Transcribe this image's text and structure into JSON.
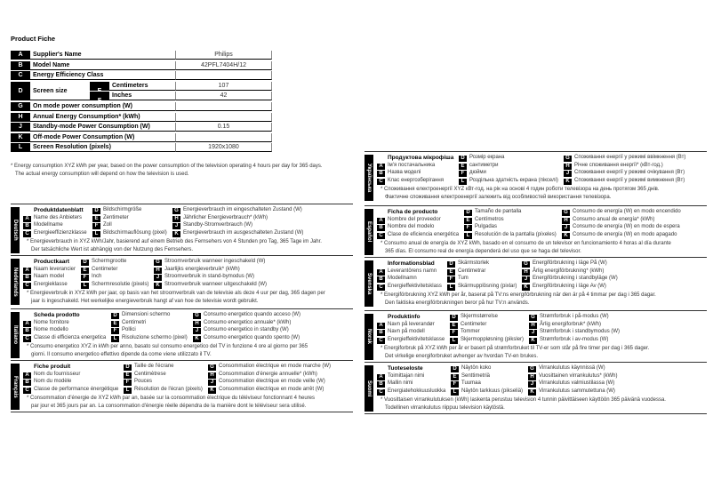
{
  "title": "Product Fiche",
  "fiche": {
    "rows": [
      {
        "letter": "A",
        "label": "Supplier's Name",
        "value": "Philips"
      },
      {
        "letter": "B",
        "label": "Model Name",
        "value": "42PFL7404H/12"
      },
      {
        "letter": "C",
        "label": "Energy Efficiency Class",
        "value": ""
      }
    ],
    "screen": {
      "letter": "D",
      "label": "Screen size",
      "subs": [
        {
          "letter": "E",
          "label": "Centimeters",
          "value": "107"
        },
        {
          "letter": "F",
          "label": "Inches",
          "value": "42"
        }
      ]
    },
    "rows2": [
      {
        "letter": "G",
        "label": "On mode power consumption (W)",
        "value": ""
      },
      {
        "letter": "H",
        "label": "Annual Energy Consumption* (kWh)",
        "value": ""
      },
      {
        "letter": "J",
        "label": "Standby-mode Power Consumption (W)",
        "value": "0.15"
      },
      {
        "letter": "K",
        "label": "Off-mode Power Consumption (W)",
        "value": ""
      },
      {
        "letter": "L",
        "label": "Screen Resolution (pixels)",
        "value": "1920x1080"
      }
    ]
  },
  "note": [
    "* Energy consumption XYZ kWh per year, based on the power consumption of the television operating 4 hours per day for 365 days.",
    "The actual energy consumption will depend on how the television is used."
  ],
  "languages": [
    {
      "lang": "Deutsch",
      "col": "left",
      "title": "Produktdatenblatt",
      "A": "Name des Anbieters",
      "B": "Modellname",
      "C": "Energieeffizienzklasse",
      "D": "Bildschirmgröße",
      "E": "Zentimeter",
      "F": "Zoll",
      "L": "Bildschirmauflösung (pixel)",
      "G": "Energieverbrauch im eingeschalteten Zustand (W)",
      "H": "Jährlicher Energieverbrauch* (kWh)",
      "J": "Standby-Stromverbrauch (W)",
      "K": "Energieverbrauch im ausgeschalteten Zustand (W)",
      "note": [
        "* Energieverbrauch in XYZ kWh/Jahr, basierend auf einem Betrieb des Fernsehers von 4 Stunden pro Tag, 365 Tage im Jahr.",
        "Der tatsächliche Wert ist abhängig von der Nutzung des Fernsehers."
      ]
    },
    {
      "lang": "Nederlands",
      "col": "left",
      "title": "Productkaart",
      "A": "Naam leverancier",
      "B": "Naam model",
      "C": "Energieklasse",
      "D": "Schermgrootte",
      "E": "Centimeter",
      "F": "Inch",
      "L": "Schermresolutie (pixels)",
      "G": "Stroomverbruik wanneer ingeschakeld (W)",
      "H": "Jaarlijks energieverbruik* (kWh)",
      "J": "Stroomverbruik in stand-bymodus (W)",
      "K": "Stroomverbruik wanneer uitgeschakeld (W)",
      "note": [
        "* Energieverbruik in XYZ kWh per jaar, op basis van het stroomverbruik van de televisie als deze 4 uur per dag, 365 dagen per",
        "jaar is ingeschakeld. Het werkelijke energieverbruik hangt af van hoe de televisie wordt gebruikt."
      ]
    },
    {
      "lang": "Italiano",
      "col": "left",
      "title": "Scheda prodotto",
      "A": "Nome fornitore",
      "B": "Nome modello",
      "C": "Classe di efficienza energetica",
      "D": "Dimensioni schermo",
      "E": "Centimetri",
      "F": "Pollici",
      "L": "Risoluzione schermo (pixel)",
      "G": "Consumo energetico quando acceso (W)",
      "H": "Consumo energetico annuale* (kWh)",
      "J": "Consumo energetico in standby (W)",
      "K": "Consumo energetico quando spento (W)",
      "note": [
        "* Consumo energetico XYZ in kWh per anno, basato sul consumo energetico del TV in funzione 4 ore al giorno per 365",
        "giorni. Il consumo energetico effettivo dipende da come viene utilizzato il TV."
      ]
    },
    {
      "lang": "Français",
      "col": "left",
      "title": "Fiche produit",
      "A": "Nom du fournisseur",
      "B": "Nom du modèle",
      "C": "Classe de performance énergétique",
      "D": "Taille de l'écrane",
      "E": "Centimètrese",
      "F": "Pouces",
      "L": "Résolution de l'écran (pixels)",
      "G": "Consommation électrique en mode marche (W)",
      "H": "Consommation d'énergie annuelle* (kWh)",
      "J": "Consommation électrique en mode veille (W)",
      "K": "Consommation électrique en mode arrêt (W)",
      "note": [
        "* Consommation d'énergie de XYZ kWh par an, basée sur la consommation électrique du téléviseur fonctionnant 4 heures",
        "par jour et 365 jours par an. La consommation d'énergie réelle dépendra de la manière dont le téléviseur sera utilisé."
      ]
    },
    {
      "lang": "Українська",
      "col": "right",
      "title": "Продуктова мікрофіша",
      "A": "Ім'я постачальника",
      "B": "Назва моделі",
      "C": "Клас енергозберігання",
      "D": "Розмір екрана",
      "E": "сантиметри",
      "F": "дюйми",
      "L": "Роздільна здатність екрана (пікселі)",
      "G": "Споживання енергії у режимі ввімкнення (Вт)",
      "H": "Річне споживання енергії* (кВт-год.)",
      "J": "Споживання енергії у режимі очікування (Вт)",
      "K": "Споживання енергії у режимі вимкнення (Вт)",
      "note": [
        "* Споживання електроенергії XYZ кВт-год. на рік на основі 4 годин роботи телевізора на день протягом 365 днів.",
        "Фактичне споживання електроенергії залежить від особливостей використання телевізора."
      ]
    },
    {
      "lang": "Español",
      "col": "right",
      "title": "Ficha de producto",
      "A": "Nombre del proveedor",
      "B": "Nombre del modelo",
      "C": "Clase de eficiencia energética",
      "D": "Tamaño de pantalla",
      "E": "Centímetros",
      "F": "Pulgadas",
      "L": "Resolución de la pantalla (píxeles)",
      "G": "Consumo de energía (W) en modo encendido",
      "H": "Consumo anual de energía* (kWh)",
      "J": "Consumo de energía (W) en modo de espera",
      "K": "Consumo de energía (W) en modo apagado",
      "note": [
        "* Consumo anual de energía de XYZ kWh, basado en el consumo de un televisor en funcionamiento 4 horas al día durante",
        "365 días. El consumo real de energía dependerá del uso que se haga del televisor."
      ]
    },
    {
      "lang": "Svenska",
      "col": "right",
      "title": "Informationsblad",
      "A": "Leverantörens namn",
      "B": "Modellnamn",
      "C": "Energieffektivitetsklass",
      "D": "Skärmstorlek",
      "E": "Centimetrar",
      "F": "Tum",
      "L": "Skärmupplösning (pixlar)",
      "G": "Energiförbrukning i läge På (W)",
      "H": "Årlig energiförbrukning* (kWh)",
      "J": "Energiförbrukning i standbyläge (W)",
      "K": "Energiförbrukning i läge Av (W)",
      "note": [
        "* Energiförbrukning XYZ kWh per år, baserat på TV:ns energiförbrukning när den är på 4 timmar per dag i 365 dagar.",
        "Den faktiska energiförbrukningen beror på hur TV:n används."
      ]
    },
    {
      "lang": "Norsk",
      "col": "right",
      "title": "Produktinfo",
      "A": "Navn på leverandør",
      "B": "Navn på modell",
      "C": "Energieffektivitetsklasse",
      "D": "Skjermstørrelse",
      "E": "Centimeter",
      "F": "Tommer",
      "L": "Skjermoppløsning (piksler)",
      "G": "Strømforbruk i på-modus (W)",
      "H": "Årlig energiforbruk* (kWh)",
      "J": "Strømforbruk i standbymodus (W)",
      "K": "Strømforbruk i av-modus (W)",
      "note": [
        "* Energiforbruk på XYZ kWh per år er basert på strømforbruket til TV-er som står på fire timer per dag i 365 dager.",
        "Det virkelige energiforbruket avhenger av hvordan TV-en brukes."
      ]
    },
    {
      "lang": "Suomi",
      "col": "right",
      "title": "Tuoteseloste",
      "A": "Toimittajan nimi",
      "B": "Mallin nimi",
      "C": "Energiatehokkuusluokka",
      "D": "Näytön koko",
      "E": "Senttimetriä",
      "F": "Tuumaa",
      "L": "Näytön tarkkuus (pikseliä)",
      "G": "Virrankulutus käynnissä (W)",
      "H": "Vuosittainen virrankulutus* (kWh)",
      "J": "Virrankulutus valmiustilassa (W)",
      "K": "Virrankulutus sammutettuna (W)",
      "note": [
        "* Vuosittaisen virrankulutuksen (kWh) laskenta perustuu television 4 tunnin päivittäiseen käyttöön 365 päivänä vuodessa.",
        "Todellinen virrankulutus riippuu television käytöstä."
      ]
    }
  ]
}
